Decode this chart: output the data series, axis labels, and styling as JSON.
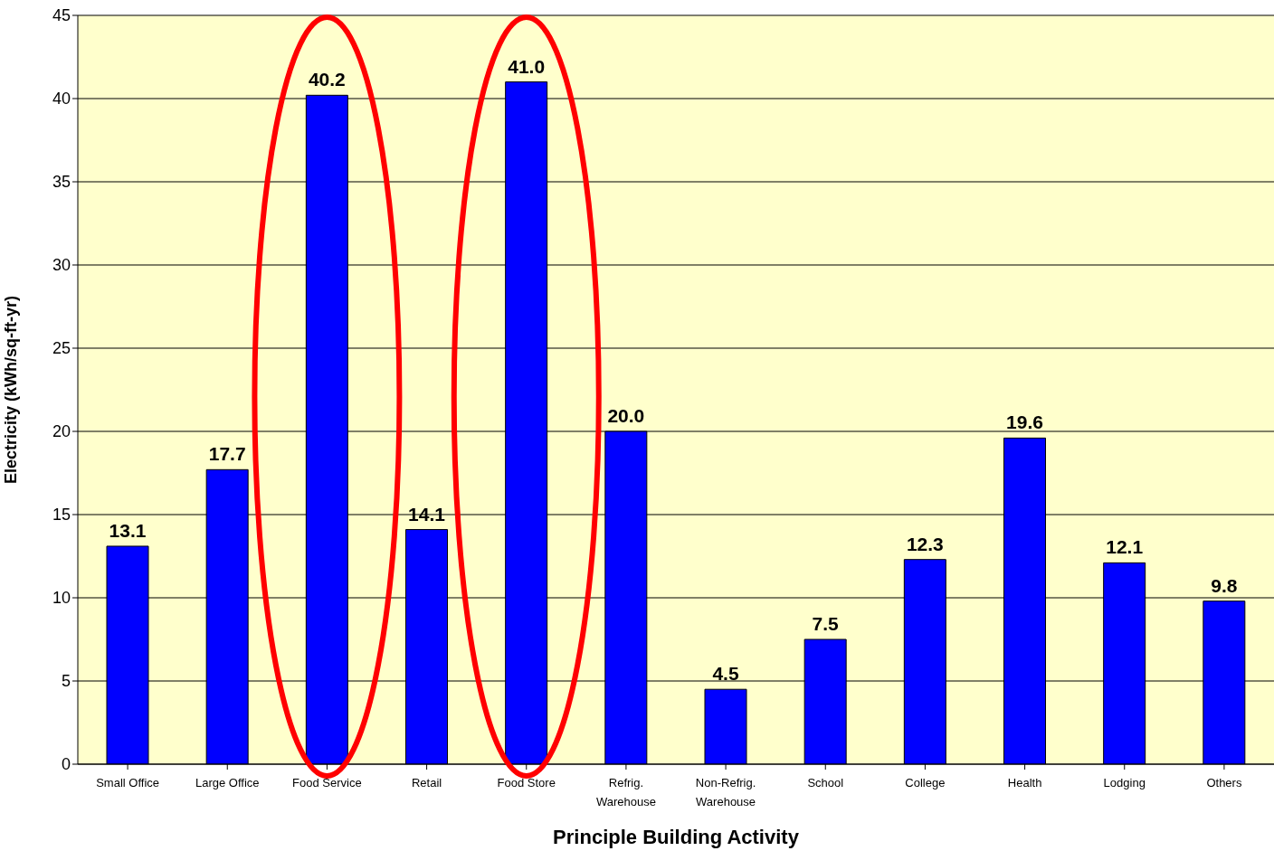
{
  "chart_data": {
    "type": "bar",
    "xlabel": "Principle Building Activity",
    "ylabel": "Electricity (kWh/sq-ft-yr)",
    "categories": [
      "Small Office",
      "Large Office",
      "Food Service",
      "Retail",
      "Food Store",
      "Refrig. Warehouse",
      "Non-Refrig. Warehouse",
      "School",
      "College",
      "Health",
      "Lodging",
      "Others"
    ],
    "values": [
      13.1,
      17.7,
      40.2,
      14.1,
      41.0,
      20.0,
      4.5,
      7.5,
      12.3,
      19.6,
      12.1,
      9.8
    ],
    "value_labels": [
      "13.1",
      "17.7",
      "40.2",
      "14.1",
      "41.0",
      "20.0",
      "4.5",
      "7.5",
      "12.3",
      "19.6",
      "12.1",
      "9.8"
    ],
    "color": "#0000ff",
    "ylim": [
      0,
      45
    ],
    "yticks": [
      0,
      5,
      10,
      15,
      20,
      25,
      30,
      35,
      40,
      45
    ],
    "grid": "y"
  }
}
